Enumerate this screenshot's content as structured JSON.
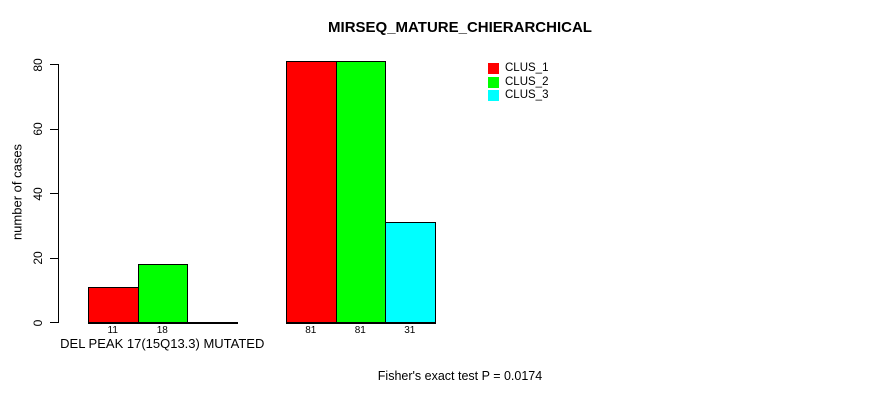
{
  "chart_data": {
    "type": "bar",
    "title": "MIRSEQ_MATURE_CHIERARCHICAL",
    "ylabel": "number of cases",
    "xlabel": "",
    "ylim": [
      0,
      80
    ],
    "yticks": [
      0,
      20,
      40,
      60,
      80
    ],
    "grid": false,
    "legend_position": "top-right-inside",
    "series": [
      {
        "name": "CLUS_1",
        "color": "#FF0000"
      },
      {
        "name": "CLUS_2",
        "color": "#00FF00"
      },
      {
        "name": "CLUS_3",
        "color": "#00FFFF"
      }
    ],
    "groups": [
      {
        "label": "DEL PEAK 17(15Q13.3) MUTATED",
        "values": [
          11,
          18,
          0
        ],
        "bar_labels": [
          "11",
          "18",
          ""
        ]
      },
      {
        "label": "",
        "values": [
          81,
          81,
          31
        ],
        "bar_labels": [
          "81",
          "81",
          "31"
        ]
      }
    ],
    "annotation": "Fisher's exact test P = 0.0174"
  }
}
